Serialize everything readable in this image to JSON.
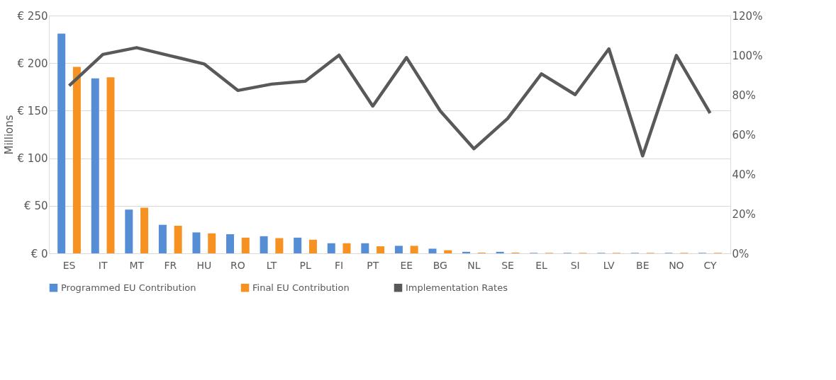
{
  "chart_data": {
    "type": "bar",
    "ylabel": "Millions",
    "categories": [
      "ES",
      "IT",
      "MT",
      "FR",
      "HU",
      "RO",
      "LT",
      "PL",
      "FI",
      "PT",
      "EE",
      "BG",
      "NL",
      "SE",
      "EL",
      "SI",
      "LV",
      "BE",
      "NO",
      "CY"
    ],
    "series": [
      {
        "name": "Programmed EU Contribution",
        "color": "#558ed5",
        "values": [
          231,
          184,
          46,
          30,
          22,
          20,
          18,
          16.5,
          10.6,
          10.6,
          7.9,
          4.9,
          1.6,
          1.6,
          0.5,
          0.5,
          0.5,
          0.5,
          0.5,
          0.5
        ]
      },
      {
        "name": "Final EU Contribution",
        "color": "#f79222",
        "values": [
          196,
          185,
          48,
          29,
          21,
          16.5,
          16,
          14.3,
          10.6,
          7.4,
          7.9,
          3.3,
          0.7,
          0.7,
          0.5,
          0.5,
          0.5,
          0.5,
          0.5,
          0.5
        ]
      },
      {
        "name": "Implementation Rates",
        "type": "line",
        "axis": "y2",
        "color": "#595959",
        "values": [
          84.6,
          100.4,
          103.8,
          99.7,
          95.6,
          82.2,
          85.4,
          86.9,
          100,
          74.3,
          98.8,
          71.9,
          52.8,
          68.1,
          90.6,
          80.1,
          103.2,
          49.2,
          99.9,
          70.8
        ]
      }
    ],
    "ylim": [
      0,
      250
    ],
    "yticks": [
      {
        "value": 0,
        "label": "€ 0"
      },
      {
        "value": 50,
        "label": "€ 50"
      },
      {
        "value": 100,
        "label": "€ 100"
      },
      {
        "value": 150,
        "label": "€ 150"
      },
      {
        "value": 200,
        "label": "€ 200"
      },
      {
        "value": 250,
        "label": "€ 250"
      }
    ],
    "y2lim": [
      0,
      120
    ],
    "y2ticks": [
      {
        "value": 0,
        "label": "0%"
      },
      {
        "value": 20,
        "label": "20%"
      },
      {
        "value": 40,
        "label": "40%"
      },
      {
        "value": 60,
        "label": "60%"
      },
      {
        "value": 80,
        "label": "80%"
      },
      {
        "value": 100,
        "label": "100%"
      },
      {
        "value": 120,
        "label": "120%"
      }
    ],
    "grid": "y",
    "legend": "bottom",
    "marker": "none",
    "line_style": "solid"
  }
}
